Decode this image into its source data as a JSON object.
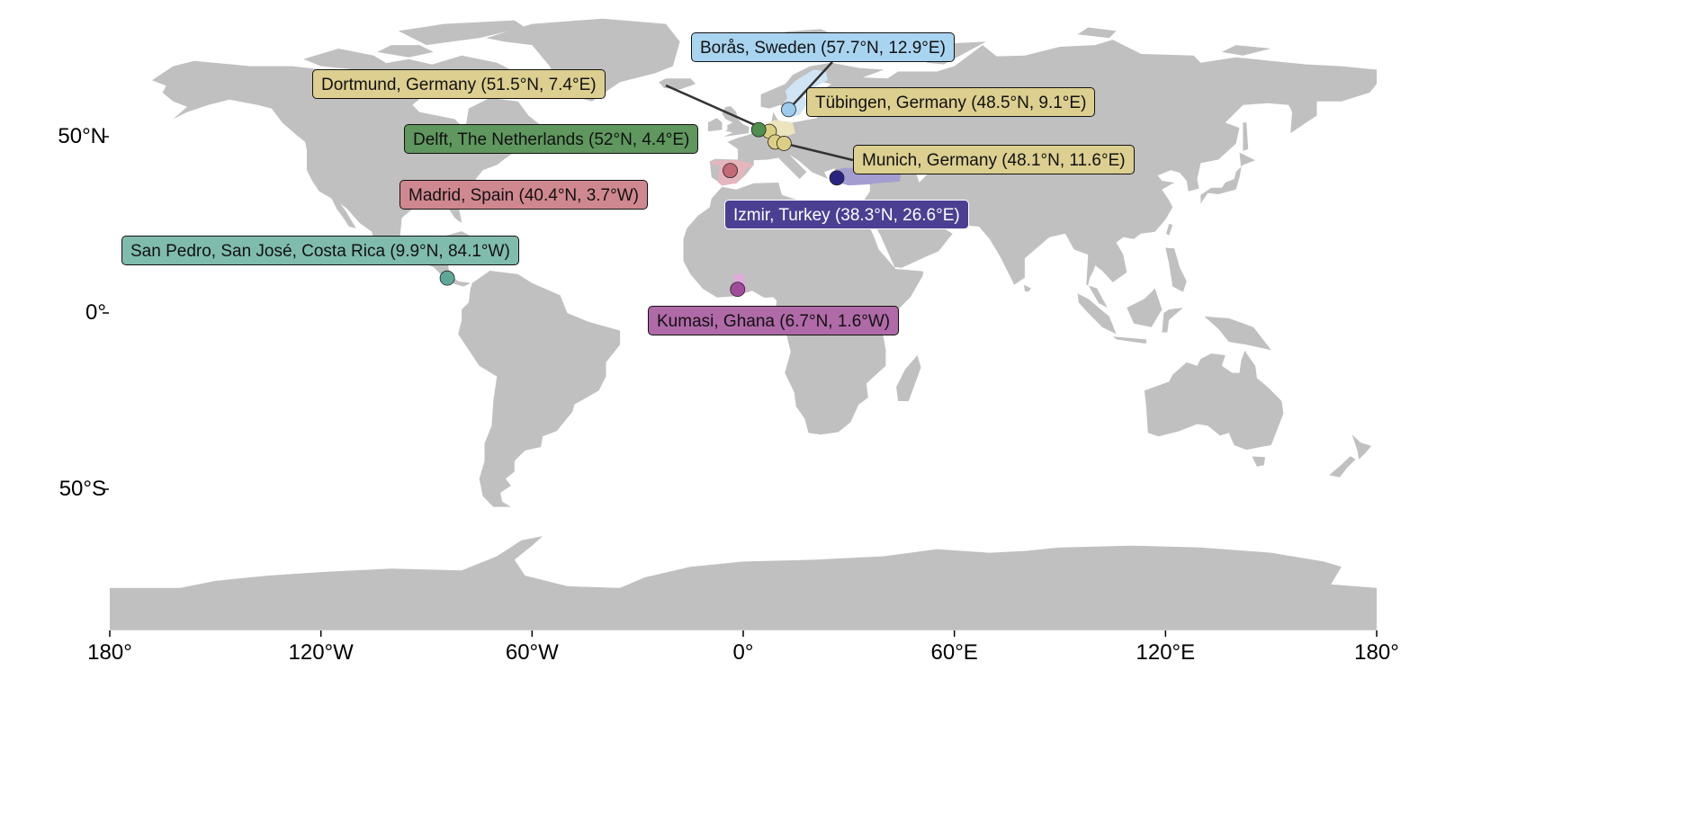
{
  "map": {
    "projection": "equirectangular",
    "land_color": "#c0c0c0",
    "background_color": "#ffffff",
    "x_ticks": [
      {
        "lon": -180,
        "label": "180°"
      },
      {
        "lon": -120,
        "label": "120°W"
      },
      {
        "lon": -60,
        "label": "60°W"
      },
      {
        "lon": 0,
        "label": "0°"
      },
      {
        "lon": 60,
        "label": "60°E"
      },
      {
        "lon": 120,
        "label": "120°E"
      },
      {
        "lon": 180,
        "label": "180°"
      }
    ],
    "y_ticks": [
      {
        "lat": 50,
        "label": "50°N"
      },
      {
        "lat": 0,
        "label": "0°"
      },
      {
        "lat": -50,
        "label": "50°S"
      }
    ]
  },
  "locations": [
    {
      "label": "Borås, Sweden (57.7°N, 12.9°E)",
      "lat": 57.7,
      "lon": 12.9,
      "country": "Sweden",
      "color": "#a9d4f0",
      "dot_color": "#9ccbee",
      "region_color": "#cfe5f6",
      "text_color": "#111111"
    },
    {
      "label": "Dortmund, Germany (51.5°N, 7.4°E)",
      "lat": 51.5,
      "lon": 7.4,
      "country": "Germany",
      "color": "#dccf8f",
      "dot_color": "#dccf85",
      "region_color": "#ece4bd",
      "text_color": "#111111"
    },
    {
      "label": "Tübingen, Germany (48.5°N, 9.1°E)",
      "lat": 48.5,
      "lon": 9.1,
      "country": "Germany",
      "color": "#dccf8f",
      "dot_color": "#dccf85",
      "region_color": "#ece4bd",
      "text_color": "#111111"
    },
    {
      "label": "Delft, The Netherlands (52°N, 4.4°E)",
      "lat": 52.0,
      "lon": 4.4,
      "country": "Netherlands",
      "color": "#5f975f",
      "dot_color": "#4f8f4f",
      "region_color": "#6ea46e",
      "text_color": "#111111"
    },
    {
      "label": "Munich, Germany (48.1°N, 11.6°E)",
      "lat": 48.1,
      "lon": 11.6,
      "country": "Germany",
      "color": "#dccf8f",
      "dot_color": "#dccf85",
      "region_color": "#ece4bd",
      "text_color": "#111111"
    },
    {
      "label": "Madrid, Spain (40.4°N, 3.7°W)",
      "lat": 40.4,
      "lon": -3.7,
      "country": "Spain",
      "color": "#d08890",
      "dot_color": "#c46a75",
      "region_color": "#e6b6bd",
      "text_color": "#111111"
    },
    {
      "label": "Izmir, Turkey (38.3°N, 26.6°E)",
      "lat": 38.3,
      "lon": 26.6,
      "country": "Turkey",
      "color": "#4b3f93",
      "dot_color": "#2a2480",
      "region_color": "#a49ed0",
      "text_color": "#ffffff"
    },
    {
      "label": "San Pedro, San José, Costa Rica (9.9°N, 84.1°W)",
      "lat": 9.9,
      "lon": -84.1,
      "country": "Costa Rica",
      "color": "#80bcae",
      "dot_color": "#5fa898",
      "region_color": "#8fc4b7",
      "text_color": "#111111"
    },
    {
      "label": "Kumasi, Ghana (6.7°N, 1.6°W)",
      "lat": 6.7,
      "lon": -1.6,
      "country": "Ghana",
      "color": "#b06aa8",
      "dot_color": "#a04c9c",
      "region_color": "#e2a9da",
      "text_color": "#111111"
    }
  ]
}
